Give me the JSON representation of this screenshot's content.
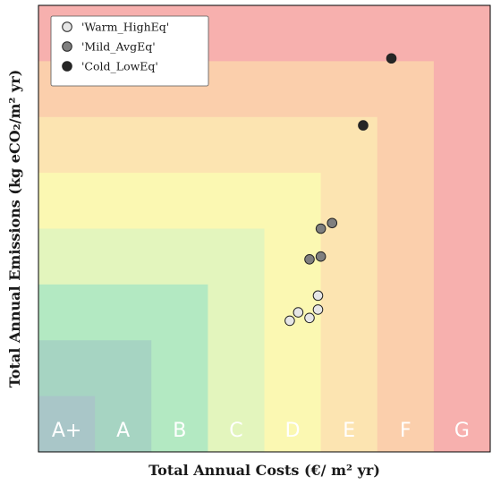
{
  "chart_data": {
    "type": "scatter",
    "xlabel": "Total Annual Costs (€/ m² yr)",
    "ylabel": "Total Annual Emissions (kg eCO₂/m² yr)",
    "xlim": [
      0,
      8
    ],
    "ylim": [
      0,
      8
    ],
    "grid": false,
    "legend_position": "top-left",
    "classes": [
      {
        "label": "A+",
        "x_upper": 1,
        "y_upper": 1,
        "color": "#a9c6c8"
      },
      {
        "label": "A",
        "x_upper": 2,
        "y_upper": 2,
        "color": "#a6d4c2"
      },
      {
        "label": "B",
        "x_upper": 3,
        "y_upper": 3,
        "color": "#b3e9c2"
      },
      {
        "label": "C",
        "x_upper": 4,
        "y_upper": 4,
        "color": "#e3f5bd"
      },
      {
        "label": "D",
        "x_upper": 5,
        "y_upper": 5,
        "color": "#fbf8b2"
      },
      {
        "label": "E",
        "x_upper": 6,
        "y_upper": 6,
        "color": "#fce4b1"
      },
      {
        "label": "F",
        "x_upper": 7,
        "y_upper": 7,
        "color": "#fbcfac"
      },
      {
        "label": "G",
        "x_upper": 8,
        "y_upper": 8,
        "color": "#f7b0ae"
      }
    ],
    "series": [
      {
        "name": "'Warm_HighEq'",
        "color": "#e6e6e6",
        "points": [
          [
            4.45,
            2.35
          ],
          [
            4.6,
            2.5
          ],
          [
            4.8,
            2.4
          ],
          [
            4.95,
            2.55
          ],
          [
            4.95,
            2.8
          ]
        ]
      },
      {
        "name": "'Mild_AvgEq'",
        "color": "#7f7f7f",
        "points": [
          [
            4.8,
            3.45
          ],
          [
            5.0,
            3.5
          ],
          [
            5.0,
            4.0
          ],
          [
            5.2,
            4.1
          ]
        ]
      },
      {
        "name": "'Cold_LowEq'",
        "color": "#262626",
        "points": [
          [
            5.75,
            5.85
          ],
          [
            6.25,
            7.05
          ]
        ]
      }
    ]
  }
}
